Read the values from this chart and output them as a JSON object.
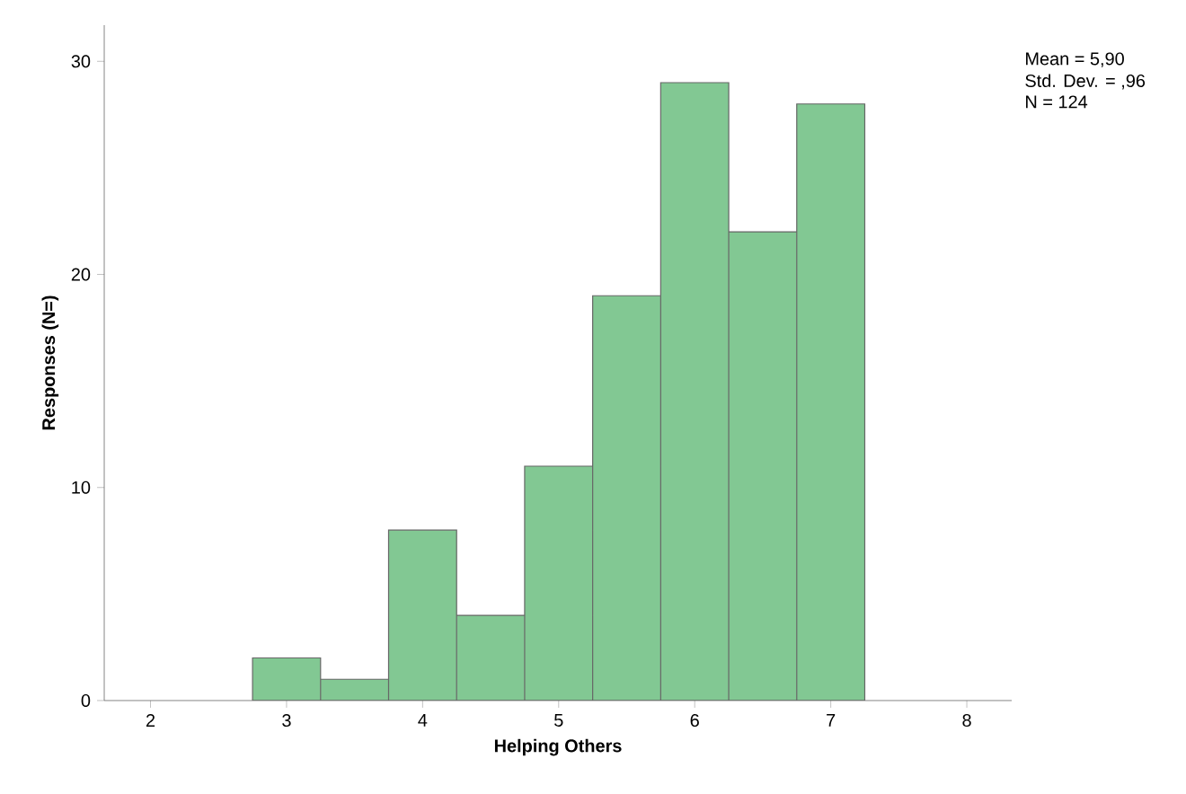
{
  "chart_data": {
    "type": "histogram",
    "xlabel": "Helping Others",
    "ylabel": "Responses (N=)",
    "bins": [
      2.75,
      3.25,
      3.75,
      4.25,
      4.75,
      5.25,
      5.75,
      6.25,
      6.75,
      7.25
    ],
    "values": [
      2,
      1,
      8,
      4,
      11,
      19,
      29,
      22,
      28
    ],
    "color": "#82c893",
    "xlim": [
      1.66,
      8.33
    ],
    "xticks": [
      2,
      3,
      4,
      5,
      6,
      7,
      8
    ],
    "ylim": [
      0,
      31.7
    ],
    "yticks": [
      0,
      10,
      20,
      30
    ],
    "grid": false,
    "annotations": [
      "Mean = 5,90",
      "Std. Dev. = ,96",
      "N = 124"
    ]
  }
}
